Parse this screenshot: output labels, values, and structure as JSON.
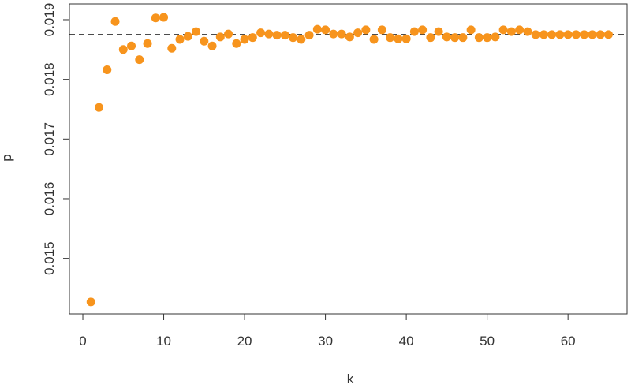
{
  "chart_data": {
    "type": "scatter",
    "x_label": "k",
    "y_label": "p",
    "x": [
      1,
      2,
      3,
      4,
      5,
      6,
      7,
      8,
      9,
      10,
      11,
      12,
      13,
      14,
      15,
      16,
      17,
      18,
      19,
      20,
      21,
      22,
      23,
      24,
      25,
      26,
      27,
      28,
      29,
      30,
      31,
      32,
      33,
      34,
      35,
      36,
      37,
      38,
      39,
      40,
      41,
      42,
      43,
      44,
      45,
      46,
      47,
      48,
      49,
      50,
      51,
      52,
      53,
      54,
      55,
      56,
      57,
      58,
      59,
      60,
      61,
      62,
      63,
      64,
      65
    ],
    "values": [
      0.01427,
      0.01753,
      0.01816,
      0.01897,
      0.0185,
      0.01856,
      0.01833,
      0.0186,
      0.01903,
      0.01904,
      0.01852,
      0.01867,
      0.01872,
      0.0188,
      0.01864,
      0.01856,
      0.01871,
      0.01876,
      0.0186,
      0.01867,
      0.0187,
      0.01878,
      0.01876,
      0.01874,
      0.01874,
      0.0187,
      0.01867,
      0.01874,
      0.01884,
      0.01883,
      0.01876,
      0.01876,
      0.01871,
      0.01878,
      0.01883,
      0.01867,
      0.01883,
      0.0187,
      0.01868,
      0.01868,
      0.0188,
      0.01883,
      0.0187,
      0.0188,
      0.01871,
      0.0187,
      0.0187,
      0.01883,
      0.0187,
      0.0187,
      0.01871,
      0.01883,
      0.0188,
      0.01883,
      0.0188,
      0.01875,
      0.01875,
      0.01875,
      0.01875,
      0.01875,
      0.01875,
      0.01875,
      0.01875,
      0.01875,
      0.01875
    ],
    "color": "#f7941d",
    "reference_line": 0.01875,
    "xlim": [
      -1.66,
      67.3
    ],
    "xticks": [
      0,
      10,
      20,
      30,
      40,
      50,
      60
    ],
    "ylim": [
      0.01407,
      0.019264
    ],
    "yticks": [
      0.015,
      0.016,
      0.017,
      0.018,
      0.019
    ]
  }
}
